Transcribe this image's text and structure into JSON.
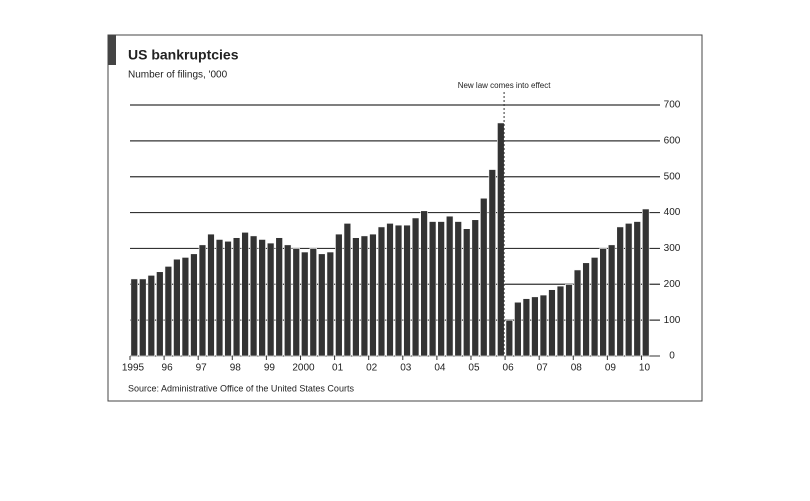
{
  "chart_data": {
    "type": "bar",
    "title": "US bankruptcies",
    "subtitle": "Number of filings, '000",
    "annotation": "New law comes into effect",
    "source": "Source: Administrative Office of the United States Courts",
    "categories": [
      "1995",
      null,
      null,
      null,
      "96",
      null,
      null,
      null,
      "97",
      null,
      null,
      null,
      "98",
      null,
      null,
      null,
      "99",
      null,
      null,
      null,
      "2000",
      null,
      null,
      null,
      "01",
      null,
      null,
      null,
      "02",
      null,
      null,
      null,
      "03",
      null,
      null,
      null,
      "04",
      null,
      null,
      null,
      "05",
      null,
      null,
      null,
      "06",
      null,
      null,
      null,
      "07",
      null,
      null,
      null,
      "08",
      null,
      null,
      null,
      "09",
      null,
      null,
      null,
      "10"
    ],
    "values": [
      215,
      215,
      225,
      235,
      250,
      270,
      275,
      285,
      310,
      340,
      325,
      320,
      330,
      345,
      335,
      325,
      315,
      330,
      310,
      300,
      290,
      300,
      285,
      290,
      340,
      370,
      330,
      335,
      340,
      360,
      370,
      365,
      365,
      385,
      405,
      375,
      375,
      390,
      375,
      355,
      380,
      440,
      520,
      650,
      100,
      150,
      160,
      165,
      170,
      185,
      195,
      200,
      240,
      260,
      275,
      300,
      310,
      360,
      370,
      375,
      410
    ],
    "color": "#333333",
    "ylim": [
      0,
      700
    ],
    "yticks": [
      0,
      100,
      200,
      300,
      400,
      500,
      600,
      700
    ],
    "grid": true
  }
}
